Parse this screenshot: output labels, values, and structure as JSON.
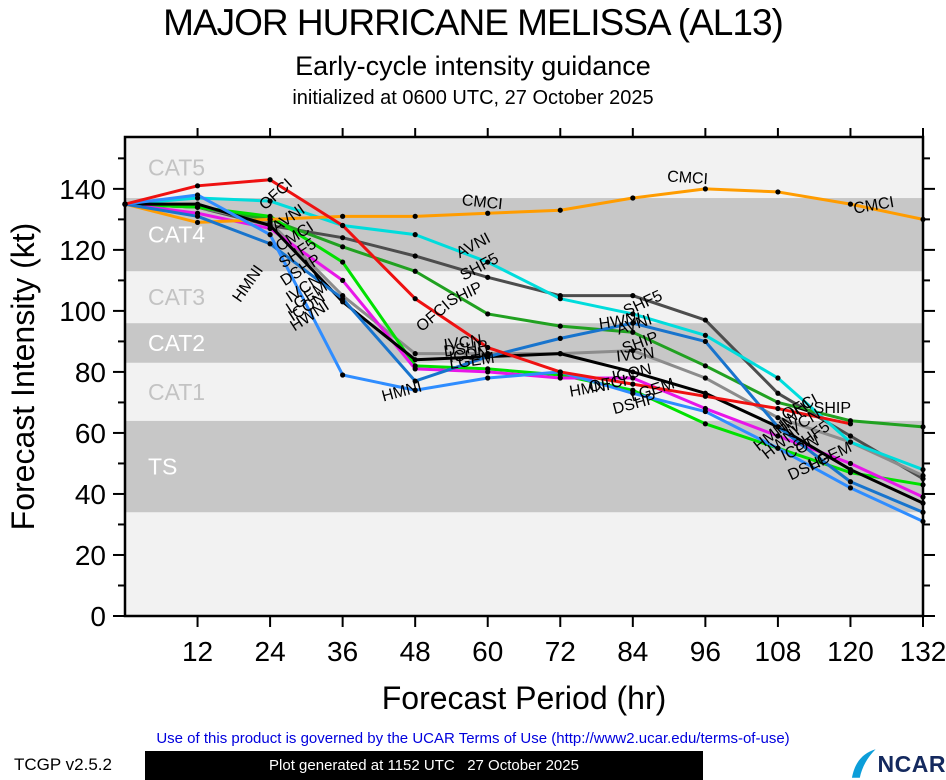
{
  "header": {
    "title": "MAJOR HURRICANE MELISSA (AL13)",
    "subtitle": "Early-cycle intensity guidance",
    "init_line": "initialized at 0600 UTC, 27 October 2025"
  },
  "chart_data": {
    "type": "line",
    "xlabel": "Forecast Period (hr)",
    "ylabel": "Forecast Intensity (kt)",
    "xlim": [
      0,
      132
    ],
    "ylim": [
      0,
      157
    ],
    "x_ticks": [
      12,
      24,
      36,
      48,
      60,
      72,
      84,
      96,
      108,
      120,
      132
    ],
    "y_ticks_major": [
      0,
      20,
      40,
      60,
      80,
      100,
      120,
      140
    ],
    "y_ticks_minor": [
      10,
      30,
      50,
      70,
      90,
      110,
      130,
      150
    ],
    "grid": false,
    "legend": "inline-labels",
    "marker_color": "#000000",
    "band_colors": {
      "dark": "#c7c7c7",
      "light": "#f2f2f2",
      "label_on_dark": "#ffffff",
      "label_on_light": "#c3c3c3"
    },
    "bands": [
      {
        "label": "",
        "from": 0,
        "to": 34,
        "shade": "light"
      },
      {
        "label": "TS",
        "from": 34,
        "to": 64,
        "shade": "dark"
      },
      {
        "label": "CAT1",
        "from": 64,
        "to": 83,
        "shade": "light"
      },
      {
        "label": "CAT2",
        "from": 83,
        "to": 96,
        "shade": "dark"
      },
      {
        "label": "CAT3",
        "from": 96,
        "to": 113,
        "shade": "light"
      },
      {
        "label": "CAT4",
        "from": 113,
        "to": 137,
        "shade": "dark"
      },
      {
        "label": "CAT5",
        "from": 137,
        "to": 157,
        "shade": "light"
      }
    ],
    "series": [
      {
        "name": "SHF5",
        "color": "#4d4d4d",
        "x": [
          0,
          12,
          24,
          36,
          48,
          60,
          72,
          84,
          96,
          108,
          120,
          132
        ],
        "values": [
          135,
          134,
          128,
          124,
          118,
          111,
          105,
          105,
          97,
          73,
          59,
          45
        ]
      },
      {
        "name": "IVCN",
        "color": "#8c8c8c",
        "x": [
          0,
          12,
          24,
          36,
          48,
          60,
          72,
          84,
          96,
          108,
          120,
          132
        ],
        "values": [
          135,
          134,
          129,
          105,
          86,
          86,
          86,
          87,
          78,
          65,
          57,
          46
        ]
      },
      {
        "name": "SHIP",
        "color": "#21a121",
        "x": [
          0,
          12,
          24,
          36,
          48,
          60,
          72,
          84,
          96,
          108,
          120,
          132
        ],
        "values": [
          135,
          134,
          130,
          121,
          113,
          99,
          95,
          93,
          82,
          70,
          64,
          62
        ]
      },
      {
        "name": "LGEM",
        "color": "#00e100",
        "x": [
          0,
          12,
          24,
          36,
          48,
          60,
          72,
          84,
          96,
          108,
          120,
          132
        ],
        "values": [
          135,
          134,
          131,
          116,
          82,
          81,
          79,
          74,
          63,
          55,
          47,
          43
        ]
      },
      {
        "name": "DSHP",
        "color": "#e816e8",
        "x": [
          0,
          12,
          24,
          36,
          48,
          60,
          72,
          84,
          96,
          108,
          120,
          132
        ],
        "values": [
          135,
          132,
          127,
          110,
          81,
          80,
          78,
          78,
          68,
          59,
          50,
          39
        ]
      },
      {
        "name": "AVNI",
        "color": "#00dcdc",
        "x": [
          0,
          12,
          24,
          36,
          48,
          60,
          72,
          84,
          96,
          108,
          120,
          132
        ],
        "values": [
          135,
          137,
          136,
          128,
          125,
          116,
          104,
          99,
          92,
          78,
          57,
          48
        ]
      },
      {
        "name": "CMCI",
        "color": "#ff9c00",
        "x": [
          0,
          12,
          24,
          36,
          48,
          60,
          72,
          84,
          96,
          108,
          120,
          132
        ],
        "values": [
          135,
          129,
          130,
          131,
          131,
          132,
          133,
          137,
          140,
          139,
          135,
          130
        ]
      },
      {
        "name": "ICON",
        "color": "#000000",
        "x": [
          0,
          12,
          24,
          36,
          48,
          60,
          72,
          84,
          96,
          108,
          120,
          132
        ],
        "values": [
          135,
          135,
          128,
          103,
          84,
          85,
          86,
          80,
          73,
          62,
          48,
          37
        ]
      },
      {
        "name": "HWNI",
        "color": "#1874cd",
        "x": [
          0,
          12,
          24,
          36,
          48,
          60,
          72,
          84,
          96,
          108,
          120,
          132
        ],
        "values": [
          135,
          131,
          122,
          104,
          77,
          85,
          91,
          96,
          90,
          62,
          44,
          34
        ]
      },
      {
        "name": "HMNI",
        "color": "#2f8dff",
        "x": [
          0,
          12,
          24,
          36,
          48,
          60,
          72,
          84,
          96,
          108,
          120,
          132
        ],
        "values": [
          135,
          138,
          125,
          79,
          74,
          78,
          80,
          73,
          67,
          55,
          42,
          31
        ]
      },
      {
        "name": "OFCI",
        "color": "#ee1111",
        "x": [
          0,
          12,
          24,
          36,
          48,
          60,
          72,
          84,
          96,
          108,
          120
        ],
        "values": [
          135,
          141,
          143,
          128,
          104,
          88,
          80,
          76,
          72,
          68,
          63
        ]
      }
    ],
    "line_labels": [
      {
        "text": "OFCI",
        "t": 25.5,
        "v": 137,
        "rot": -42
      },
      {
        "text": "AVNI",
        "t": 27.5,
        "v": 129,
        "rot": -35
      },
      {
        "text": "CMCI",
        "t": 28.5,
        "v": 123,
        "rot": -33
      },
      {
        "text": "SHF5",
        "t": 29,
        "v": 117.5,
        "rot": -33
      },
      {
        "text": "DSHP",
        "t": 29.5,
        "v": 112,
        "rot": -33
      },
      {
        "text": "IVCN",
        "t": 30,
        "v": 106,
        "rot": -33
      },
      {
        "text": "LGEM",
        "t": 30.5,
        "v": 103,
        "rot": -33
      },
      {
        "text": "ICON",
        "t": 30.5,
        "v": 100,
        "rot": -33
      },
      {
        "text": "HWNI",
        "t": 31,
        "v": 97,
        "rot": -33
      },
      {
        "text": "HMNI",
        "t": 21,
        "v": 108,
        "rot": -55
      },
      {
        "text": "OFCI",
        "t": 51.5,
        "v": 97,
        "rot": -40
      },
      {
        "text": "HMNI",
        "t": 46,
        "v": 72,
        "rot": -15
      },
      {
        "text": "IVCN",
        "t": 56,
        "v": 88,
        "rot": -8
      },
      {
        "text": "DSHP",
        "t": 56.5,
        "v": 86,
        "rot": -8
      },
      {
        "text": "ICON",
        "t": 57,
        "v": 84,
        "rot": -8
      },
      {
        "text": "LGEM",
        "t": 57.5,
        "v": 82,
        "rot": -8
      },
      {
        "text": "AVNI",
        "t": 58,
        "v": 120,
        "rot": -28
      },
      {
        "text": "SHF5",
        "t": 59,
        "v": 113,
        "rot": -28
      },
      {
        "text": "SHIP",
        "t": 56.5,
        "v": 104,
        "rot": -25
      },
      {
        "text": "CMCI",
        "t": 59,
        "v": 134,
        "rot": 6
      },
      {
        "text": "CMCI",
        "t": 93,
        "v": 142,
        "rot": 4
      },
      {
        "text": "SHF5",
        "t": 86,
        "v": 101,
        "rot": -25
      },
      {
        "text": "HWNI",
        "t": 82,
        "v": 95,
        "rot": -8
      },
      {
        "text": "AVNI",
        "t": 84.5,
        "v": 94,
        "rot": -18
      },
      {
        "text": "SHIP",
        "t": 85.5,
        "v": 88,
        "rot": -20
      },
      {
        "text": "IVCN",
        "t": 84.5,
        "v": 84,
        "rot": -6
      },
      {
        "text": "ICON",
        "t": 84,
        "v": 78,
        "rot": -12
      },
      {
        "text": "OFCI",
        "t": 80,
        "v": 74.5,
        "rot": -10
      },
      {
        "text": "LGEM",
        "t": 87.5,
        "v": 72.5,
        "rot": -18
      },
      {
        "text": "DSHP",
        "t": 84.5,
        "v": 68,
        "rot": -15
      },
      {
        "text": "HMNI",
        "t": 77,
        "v": 73,
        "rot": -10
      },
      {
        "text": "OFCI",
        "t": 112,
        "v": 67,
        "rot": -28
      },
      {
        "text": "SHIP",
        "t": 117,
        "v": 66.5,
        "rot": 0
      },
      {
        "text": "IVCN",
        "t": 112.5,
        "v": 62,
        "rot": -30
      },
      {
        "text": "HWNI",
        "t": 111,
        "v": 64,
        "rot": -40
      },
      {
        "text": "SHF5",
        "t": 114,
        "v": 57.5,
        "rot": -35
      },
      {
        "text": "ICON",
        "t": 112,
        "v": 53.5,
        "rot": -25
      },
      {
        "text": "LGEM",
        "t": 117,
        "v": 51,
        "rot": -25
      },
      {
        "text": "DSHP",
        "t": 113.5,
        "v": 47.5,
        "rot": -25
      },
      {
        "text": "HMNI",
        "t": 107.5,
        "v": 58,
        "rot": -38
      },
      {
        "text": "HWNI",
        "t": 109,
        "v": 55.5,
        "rot": -38
      },
      {
        "text": "CMCI",
        "t": 124,
        "v": 133,
        "rot": -10
      }
    ]
  },
  "footer": {
    "terms": "Use of this product is governed by the UCAR Terms of Use (http://www2.ucar.edu/terms-of-use)",
    "terms_color": "#0000dd",
    "version": "TCGP v2.5.2",
    "generated": "Plot generated at 1152 UTC   27 October 2025",
    "logo_text": "NCAR",
    "logo_color": "#0c9ed9",
    "logo_text_color": "#14295e"
  }
}
